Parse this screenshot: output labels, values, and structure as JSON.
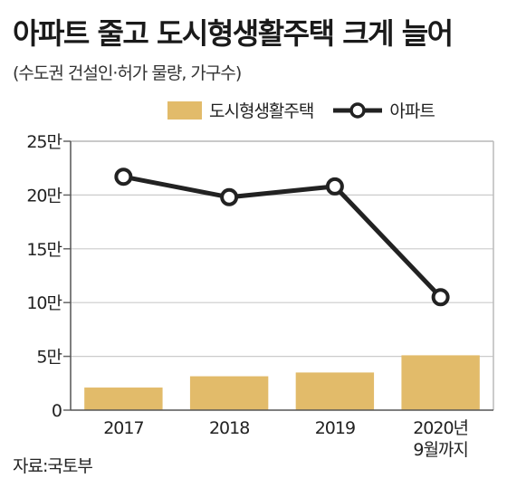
{
  "header": {
    "title": "아파트 줄고 도시형생활주택 크게 늘어",
    "subtitle": "(수도권 건설인·허가 물량, 가구수)"
  },
  "footer": {
    "source": "자료:국토부"
  },
  "chart_data": {
    "type": "bar+line",
    "categories": [
      [
        "2017"
      ],
      [
        "2018"
      ],
      [
        "2019"
      ],
      [
        "2020년",
        "9월까지"
      ]
    ],
    "series": [
      {
        "name": "도시형생활주택",
        "type": "bar",
        "color": "#e2bb6a",
        "values": [
          21000,
          31500,
          35000,
          51000
        ]
      },
      {
        "name": "아파트",
        "type": "line",
        "color": "#222222",
        "values": [
          217000,
          198000,
          208000,
          105000
        ]
      }
    ],
    "y_ticks": [
      {
        "value": 0,
        "label": "0"
      },
      {
        "value": 50000,
        "label": "5만"
      },
      {
        "value": 100000,
        "label": "10만"
      },
      {
        "value": 150000,
        "label": "15만"
      },
      {
        "value": 200000,
        "label": "20만"
      },
      {
        "value": 250000,
        "label": "25만"
      }
    ],
    "ylim": [
      0,
      250000
    ],
    "grid": true,
    "legend_position": "top-right"
  }
}
